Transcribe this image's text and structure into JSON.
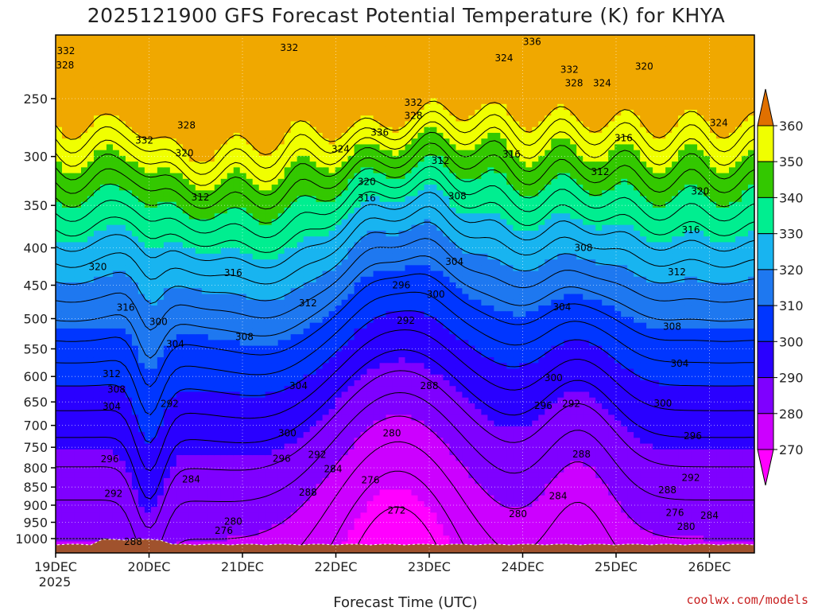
{
  "chart_data": {
    "type": "heatmap",
    "title": "2025121900 GFS Forecast Potential Temperature (K) for KHYA",
    "xlabel": "Forecast Time (UTC)",
    "credit": "coolwx.com/models",
    "y_axis": {
      "scale": "log-pressure",
      "reversed": true,
      "ticks": [
        250,
        300,
        350,
        400,
        450,
        500,
        550,
        600,
        650,
        700,
        750,
        800,
        850,
        900,
        950,
        1000
      ]
    },
    "x_axis": {
      "ticks": [
        "19DEC",
        "20DEC",
        "21DEC",
        "22DEC",
        "23DEC",
        "24DEC",
        "25DEC",
        "26DEC"
      ],
      "year": "2025"
    },
    "colorbar": {
      "levels": [
        270,
        280,
        290,
        300,
        310,
        320,
        330,
        340,
        350,
        360
      ],
      "colors": [
        "#ff00ff",
        "#cc00ff",
        "#7f00ff",
        "#2a00ff",
        "#0036ff",
        "#1e78f0",
        "#18b4f0",
        "#00ee90",
        "#33c800",
        "#f0ff00",
        "#f0a800",
        "#e07000"
      ]
    },
    "grid": true,
    "contour_labels": [
      {
        "v": "332",
        "t": 0.11,
        "p": 215
      },
      {
        "v": "328",
        "t": 0.1,
        "p": 225
      },
      {
        "v": "332",
        "t": 2.5,
        "p": 213
      },
      {
        "v": "324",
        "t": 4.8,
        "p": 220
      },
      {
        "v": "336",
        "t": 5.1,
        "p": 209
      },
      {
        "v": "332",
        "t": 5.5,
        "p": 228
      },
      {
        "v": "328",
        "t": 5.55,
        "p": 238
      },
      {
        "v": "324",
        "t": 5.85,
        "p": 238
      },
      {
        "v": "320",
        "t": 6.3,
        "p": 226
      },
      {
        "v": "332",
        "t": 0.95,
        "p": 285
      },
      {
        "v": "328",
        "t": 1.4,
        "p": 272
      },
      {
        "v": "320",
        "t": 1.38,
        "p": 297
      },
      {
        "v": "336",
        "t": 3.47,
        "p": 278
      },
      {
        "v": "332",
        "t": 3.83,
        "p": 253
      },
      {
        "v": "328",
        "t": 3.83,
        "p": 264
      },
      {
        "v": "324",
        "t": 3.05,
        "p": 293
      },
      {
        "v": "316",
        "t": 6.08,
        "p": 283
      },
      {
        "v": "324",
        "t": 7.1,
        "p": 270
      },
      {
        "v": "312",
        "t": 4.12,
        "p": 304
      },
      {
        "v": "316",
        "t": 4.88,
        "p": 298
      },
      {
        "v": "312",
        "t": 5.83,
        "p": 315
      },
      {
        "v": "320",
        "t": 3.33,
        "p": 325
      },
      {
        "v": "316",
        "t": 3.33,
        "p": 342
      },
      {
        "v": "308",
        "t": 4.3,
        "p": 340
      },
      {
        "v": "312",
        "t": 1.55,
        "p": 341
      },
      {
        "v": "320",
        "t": 6.9,
        "p": 335
      },
      {
        "v": "316",
        "t": 6.8,
        "p": 378
      },
      {
        "v": "308",
        "t": 5.65,
        "p": 400
      },
      {
        "v": "304",
        "t": 4.27,
        "p": 418
      },
      {
        "v": "320",
        "t": 0.45,
        "p": 425
      },
      {
        "v": "316",
        "t": 1.9,
        "p": 433
      },
      {
        "v": "312",
        "t": 6.65,
        "p": 432
      },
      {
        "v": "296",
        "t": 3.7,
        "p": 450
      },
      {
        "v": "300",
        "t": 4.07,
        "p": 463
      },
      {
        "v": "316",
        "t": 0.75,
        "p": 483
      },
      {
        "v": "312",
        "t": 2.7,
        "p": 476
      },
      {
        "v": "304",
        "t": 5.42,
        "p": 482
      },
      {
        "v": "300",
        "t": 1.1,
        "p": 505
      },
      {
        "v": "292",
        "t": 3.75,
        "p": 503
      },
      {
        "v": "308",
        "t": 6.6,
        "p": 513
      },
      {
        "v": "308",
        "t": 2.02,
        "p": 530
      },
      {
        "v": "304",
        "t": 1.28,
        "p": 542
      },
      {
        "v": "304",
        "t": 6.68,
        "p": 576
      },
      {
        "v": "312",
        "t": 0.6,
        "p": 595
      },
      {
        "v": "300",
        "t": 5.33,
        "p": 603
      },
      {
        "v": "308",
        "t": 0.65,
        "p": 625
      },
      {
        "v": "288",
        "t": 4.0,
        "p": 618
      },
      {
        "v": "304",
        "t": 2.6,
        "p": 618
      },
      {
        "v": "304",
        "t": 0.6,
        "p": 660
      },
      {
        "v": "292",
        "t": 1.22,
        "p": 654
      },
      {
        "v": "296",
        "t": 5.22,
        "p": 658
      },
      {
        "v": "292",
        "t": 5.52,
        "p": 654
      },
      {
        "v": "300",
        "t": 6.5,
        "p": 653
      },
      {
        "v": "300",
        "t": 2.48,
        "p": 717
      },
      {
        "v": "280",
        "t": 3.6,
        "p": 717
      },
      {
        "v": "296",
        "t": 6.82,
        "p": 724
      },
      {
        "v": "296",
        "t": 0.58,
        "p": 778
      },
      {
        "v": "292",
        "t": 2.8,
        "p": 768
      },
      {
        "v": "296",
        "t": 2.42,
        "p": 777
      },
      {
        "v": "288",
        "t": 5.63,
        "p": 767
      },
      {
        "v": "284",
        "t": 2.97,
        "p": 803
      },
      {
        "v": "284",
        "t": 1.45,
        "p": 830
      },
      {
        "v": "276",
        "t": 3.37,
        "p": 832
      },
      {
        "v": "292",
        "t": 6.8,
        "p": 825
      },
      {
        "v": "292",
        "t": 0.62,
        "p": 868
      },
      {
        "v": "288",
        "t": 2.7,
        "p": 865
      },
      {
        "v": "284",
        "t": 5.38,
        "p": 875
      },
      {
        "v": "288",
        "t": 6.55,
        "p": 858
      },
      {
        "v": "272",
        "t": 3.65,
        "p": 915
      },
      {
        "v": "276",
        "t": 6.63,
        "p": 922
      },
      {
        "v": "280",
        "t": 4.95,
        "p": 925
      },
      {
        "v": "284",
        "t": 7.0,
        "p": 930
      },
      {
        "v": "280",
        "t": 1.9,
        "p": 948
      },
      {
        "v": "280",
        "t": 6.75,
        "p": 963
      },
      {
        "v": "276",
        "t": 1.8,
        "p": 975
      },
      {
        "v": "288",
        "t": 0.83,
        "p": 1010
      }
    ]
  }
}
